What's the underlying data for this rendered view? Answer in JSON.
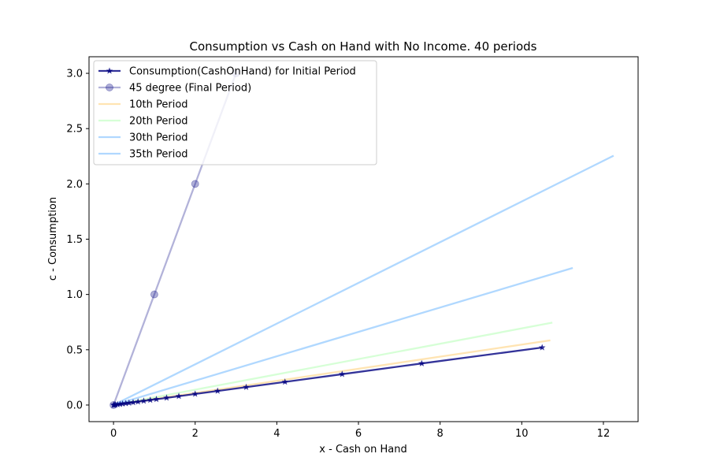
{
  "chart_data": {
    "type": "line",
    "title": "Consumption vs Cash on Hand with No Income. 40 periods",
    "xlabel": "x - Cash on Hand",
    "ylabel": "c - Consumption",
    "xlim": [
      -0.6,
      12.85
    ],
    "ylim": [
      -0.15,
      3.15
    ],
    "xticks": [
      0,
      2,
      4,
      6,
      8,
      10,
      12
    ],
    "xtick_labels": [
      "0",
      "2",
      "4",
      "6",
      "8",
      "10",
      "12"
    ],
    "yticks": [
      0.0,
      0.5,
      1.0,
      1.5,
      2.0,
      2.5,
      3.0
    ],
    "ytick_labels": [
      "0.0",
      "0.5",
      "1.0",
      "1.5",
      "2.0",
      "2.5",
      "3.0"
    ],
    "grid": false,
    "legend_position": "top-left",
    "series": [
      {
        "name": "Consumption(CashOnHand) for Initial Period",
        "color": "#000080",
        "alpha": 0.8,
        "marker": "star",
        "x": [
          0.0,
          0.02,
          0.05,
          0.1,
          0.16,
          0.22,
          0.3,
          0.38,
          0.48,
          0.6,
          0.74,
          0.9,
          1.05,
          1.3,
          1.6,
          2.0,
          2.55,
          3.25,
          4.2,
          5.6,
          7.55,
          10.5
        ],
        "y": [
          0.0,
          0.001,
          0.0025,
          0.005,
          0.008,
          0.011,
          0.015,
          0.019,
          0.024,
          0.03,
          0.037,
          0.045,
          0.052,
          0.065,
          0.08,
          0.1,
          0.127,
          0.162,
          0.209,
          0.279,
          0.376,
          0.52
        ]
      },
      {
        "name": "45 degree (Final Period)",
        "color": "#000080",
        "alpha": 0.3,
        "marker": "circle",
        "x": [
          0,
          1,
          2,
          3
        ],
        "y": [
          0,
          1,
          2,
          3
        ]
      },
      {
        "name": "10th Period",
        "color": "#ffa500",
        "alpha": 0.3,
        "marker": "none",
        "x": [
          0,
          10.7
        ],
        "y": [
          0,
          0.585
        ]
      },
      {
        "name": "20th Period",
        "color": "#32ff32",
        "alpha": 0.2,
        "marker": "none",
        "x": [
          0,
          10.75
        ],
        "y": [
          0,
          0.745
        ]
      },
      {
        "name": "30th Period",
        "color": "#1e90ff",
        "alpha": 0.35,
        "marker": "none",
        "x": [
          0,
          11.25
        ],
        "y": [
          0,
          1.24
        ]
      },
      {
        "name": "35th Period",
        "color": "#1e90ff",
        "alpha": 0.35,
        "marker": "none",
        "x": [
          0,
          12.25
        ],
        "y": [
          0,
          2.255
        ]
      }
    ]
  }
}
